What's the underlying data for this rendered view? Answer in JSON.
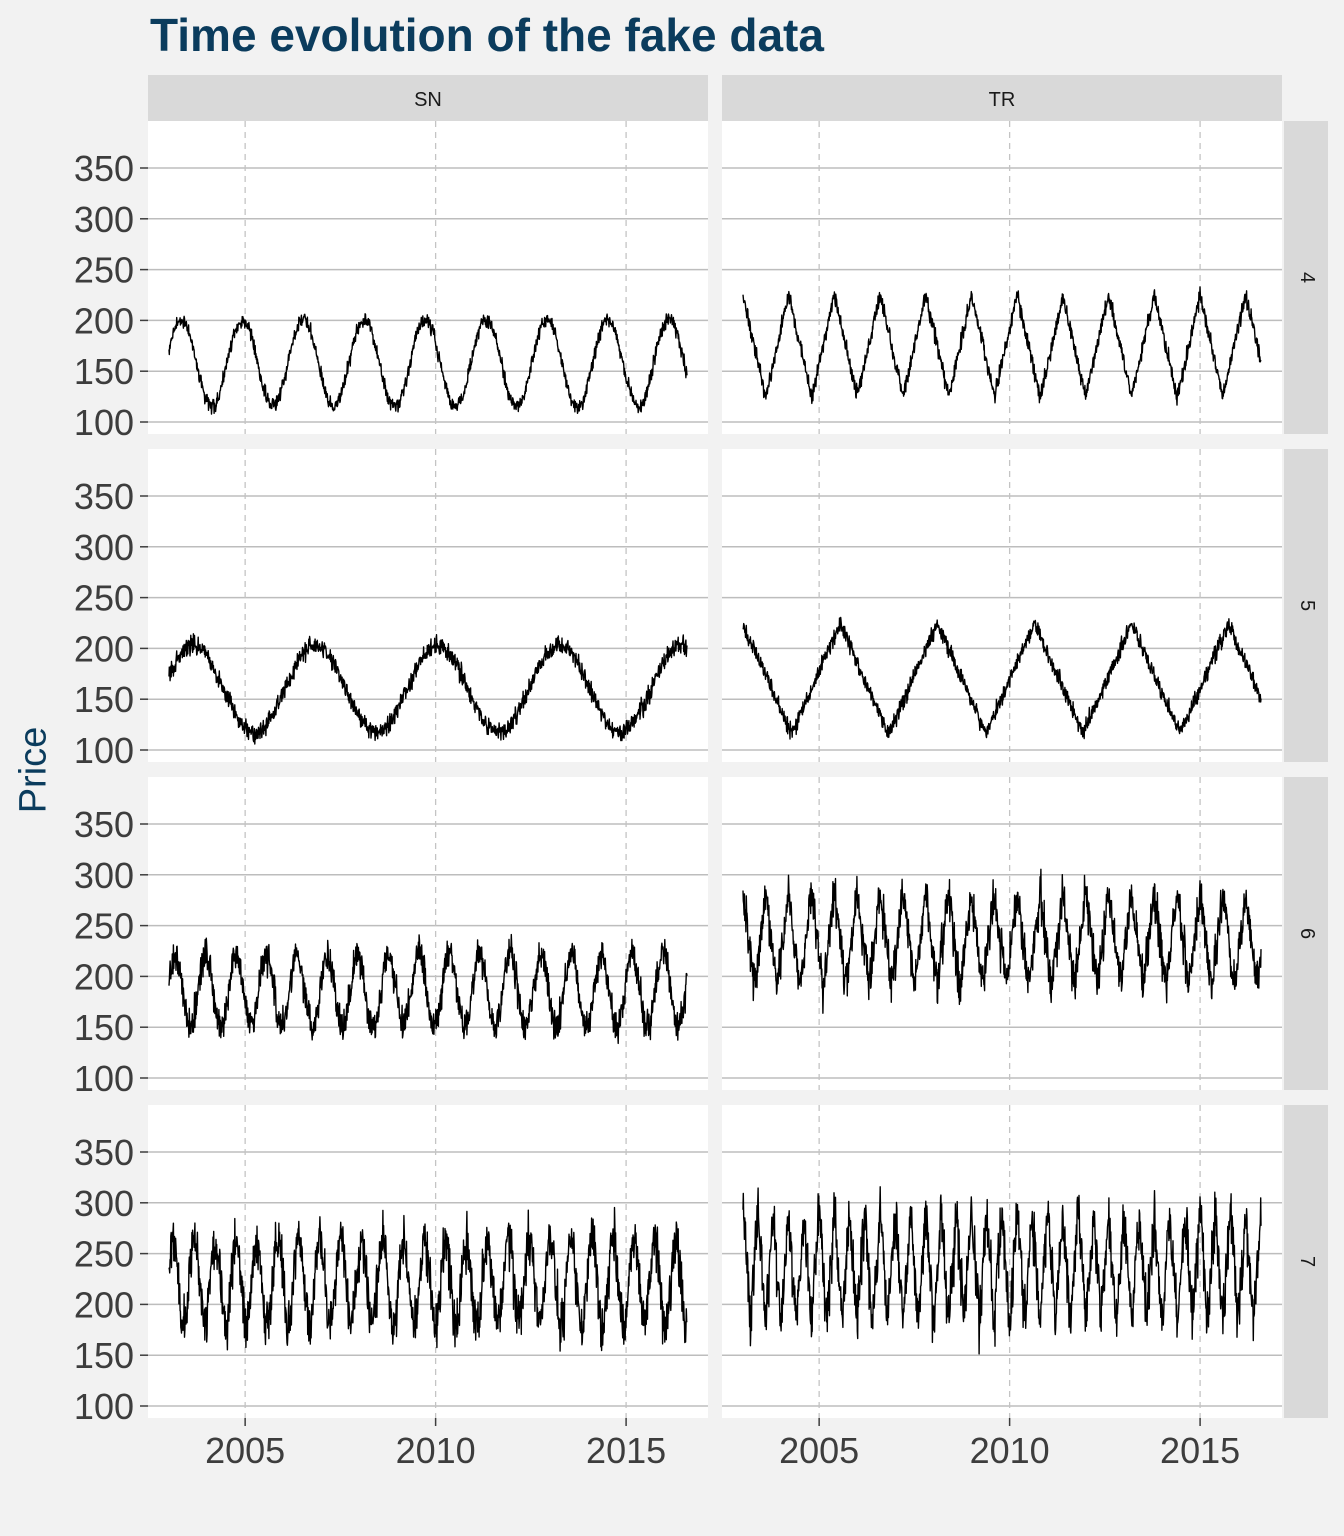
{
  "chart_data": {
    "type": "line",
    "title": "Time evolution of the fake data",
    "ylabel": "Price",
    "xlabel": "",
    "xlim": [
      2003.0,
      2016.6
    ],
    "ylim": [
      100,
      350
    ],
    "x_ticks": [
      "2005",
      "2010",
      "2015"
    ],
    "y_ticks": [
      "100",
      "150",
      "200",
      "250",
      "300",
      "350"
    ],
    "x_tick_values": [
      2005,
      2010,
      2015
    ],
    "y_tick_values": [
      100,
      150,
      200,
      250,
      300,
      350
    ],
    "facet_columns": [
      "SN",
      "TR"
    ],
    "facet_rows": [
      "4",
      "5",
      "6",
      "7"
    ],
    "grid": "on",
    "legend": "none",
    "line_color": "#000000",
    "panels": [
      {
        "column": "SN",
        "row": "4",
        "shape": "sine",
        "period_years": 1.6,
        "center": 158,
        "amplitude": 43,
        "noise": 6
      },
      {
        "column": "TR",
        "row": "4",
        "shape": "triangle",
        "period_years": 1.2,
        "center": 175,
        "amplitude": 50,
        "noise": 7
      },
      {
        "column": "SN",
        "row": "5",
        "shape": "sine",
        "period_years": 3.2,
        "center": 160,
        "amplitude": 43,
        "noise": 8
      },
      {
        "column": "TR",
        "row": "5",
        "shape": "triangle",
        "period_years": 2.55,
        "center": 170,
        "amplitude": 54,
        "noise": 7
      },
      {
        "column": "SN",
        "row": "6",
        "shape": "sine",
        "period_years": 0.8,
        "center": 186,
        "amplitude": 35,
        "noise": 14
      },
      {
        "column": "TR",
        "row": "6",
        "shape": "triangle",
        "period_years": 0.6,
        "center": 236,
        "amplitude": 46,
        "noise": 18
      },
      {
        "column": "SN",
        "row": "7",
        "shape": "sine",
        "period_years": 0.55,
        "center": 222,
        "amplitude": 42,
        "noise": 22
      },
      {
        "column": "TR",
        "row": "7",
        "shape": "triangle",
        "period_years": 0.4,
        "center": 236,
        "amplitude": 54,
        "noise": 24
      }
    ]
  }
}
